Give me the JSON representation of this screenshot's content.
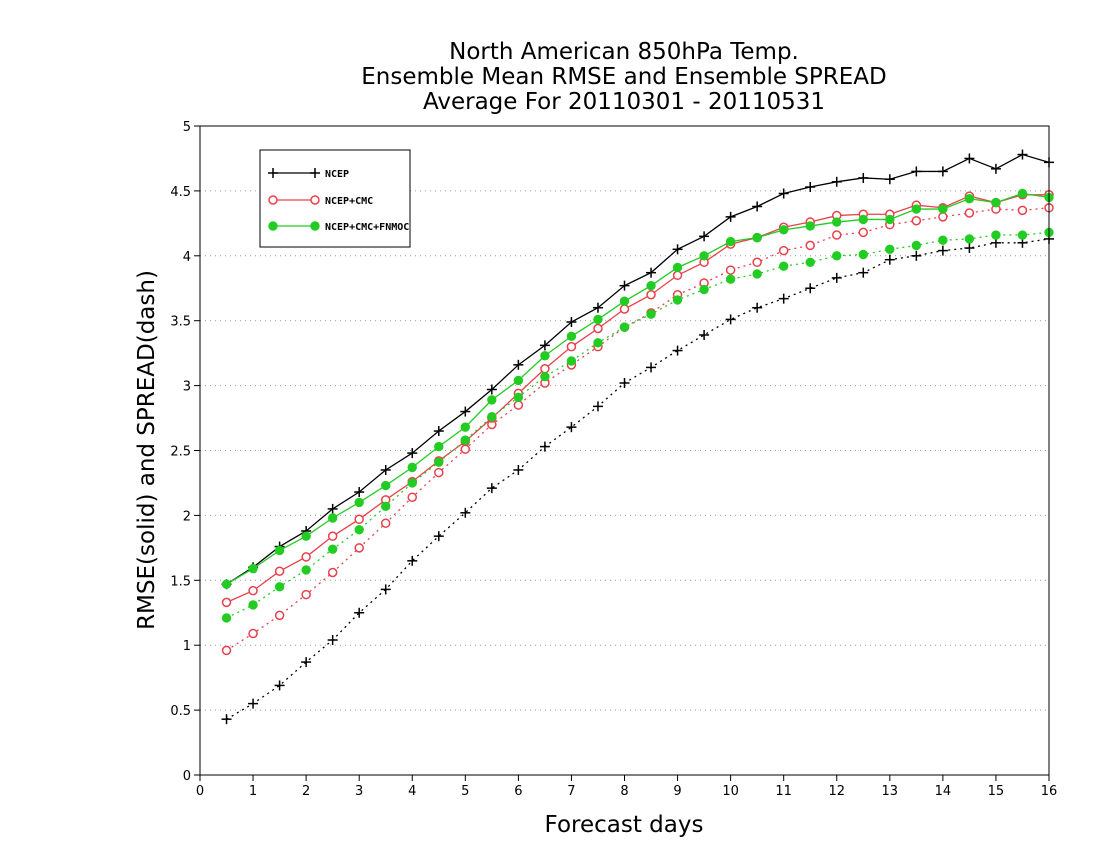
{
  "chart_data": {
    "type": "line",
    "title_lines": [
      "North American 850hPa Temp.",
      "Ensemble Mean RMSE and Ensemble SPREAD",
      "Average For 20110301 - 20110531"
    ],
    "xlabel": "Forecast days",
    "ylabel": "RMSE(solid) and SPREAD(dash)",
    "xlim": [
      0,
      16
    ],
    "ylim": [
      0,
      5
    ],
    "xticks": [
      0,
      1,
      2,
      3,
      4,
      5,
      6,
      7,
      8,
      9,
      10,
      11,
      12,
      13,
      14,
      15,
      16
    ],
    "yticks": [
      0,
      0.5,
      1,
      1.5,
      2,
      2.5,
      3,
      3.5,
      4,
      4.5,
      5
    ],
    "grid": "horizontal-dotted",
    "legend_position": "top-left",
    "x": [
      0.5,
      1,
      1.5,
      2,
      2.5,
      3,
      3.5,
      4,
      4.5,
      5,
      5.5,
      6,
      6.5,
      7,
      7.5,
      8,
      8.5,
      9,
      9.5,
      10,
      10.5,
      11,
      11.5,
      12,
      12.5,
      13,
      13.5,
      14,
      14.5,
      15,
      15.5,
      16
    ],
    "series": [
      {
        "name": "NCEP",
        "color": "#000000",
        "marker": "plus",
        "rmse": [
          1.47,
          1.6,
          1.76,
          1.88,
          2.05,
          2.18,
          2.35,
          2.48,
          2.65,
          2.8,
          2.97,
          3.16,
          3.31,
          3.49,
          3.6,
          3.77,
          3.87,
          4.05,
          4.15,
          4.3,
          4.38,
          4.48,
          4.53,
          4.57,
          4.6,
          4.59,
          4.65,
          4.65,
          4.75,
          4.67,
          4.78,
          4.72
        ],
        "spread": [
          0.43,
          0.55,
          0.69,
          0.87,
          1.04,
          1.25,
          1.43,
          1.65,
          1.84,
          2.02,
          2.21,
          2.35,
          2.53,
          2.68,
          2.84,
          3.02,
          3.14,
          3.27,
          3.39,
          3.51,
          3.6,
          3.67,
          3.75,
          3.83,
          3.87,
          3.97,
          4.0,
          4.04,
          4.06,
          4.1,
          4.1,
          4.13
        ]
      },
      {
        "name": "NCEP+CMC",
        "color": "#e8404a",
        "marker": "open-circle",
        "rmse": [
          1.33,
          1.42,
          1.57,
          1.68,
          1.84,
          1.97,
          2.12,
          2.26,
          2.42,
          2.57,
          2.75,
          2.94,
          3.13,
          3.3,
          3.44,
          3.59,
          3.7,
          3.85,
          3.95,
          4.09,
          4.14,
          4.22,
          4.26,
          4.31,
          4.32,
          4.32,
          4.39,
          4.37,
          4.46,
          4.41,
          4.47,
          4.47
        ],
        "spread": [
          0.96,
          1.09,
          1.23,
          1.39,
          1.56,
          1.75,
          1.94,
          2.14,
          2.33,
          2.51,
          2.7,
          2.85,
          3.02,
          3.16,
          3.3,
          3.45,
          3.56,
          3.7,
          3.79,
          3.89,
          3.95,
          4.04,
          4.08,
          4.16,
          4.18,
          4.24,
          4.27,
          4.3,
          4.33,
          4.36,
          4.35,
          4.37
        ]
      },
      {
        "name": "NCEP+CMC+FNMOC",
        "color": "#22cc22",
        "marker": "filled-circle",
        "rmse": [
          1.47,
          1.59,
          1.73,
          1.84,
          1.98,
          2.1,
          2.23,
          2.37,
          2.53,
          2.68,
          2.89,
          3.04,
          3.23,
          3.38,
          3.51,
          3.65,
          3.77,
          3.91,
          4.0,
          4.11,
          4.14,
          4.2,
          4.23,
          4.26,
          4.28,
          4.28,
          4.36,
          4.36,
          4.44,
          4.41,
          4.48,
          4.45
        ],
        "spread": [
          1.21,
          1.31,
          1.45,
          1.58,
          1.74,
          1.89,
          2.07,
          2.25,
          2.41,
          2.58,
          2.76,
          2.91,
          3.07,
          3.19,
          3.33,
          3.45,
          3.55,
          3.66,
          3.74,
          3.82,
          3.86,
          3.92,
          3.95,
          4.0,
          4.01,
          4.05,
          4.08,
          4.12,
          4.13,
          4.16,
          4.16,
          4.18
        ]
      }
    ]
  }
}
